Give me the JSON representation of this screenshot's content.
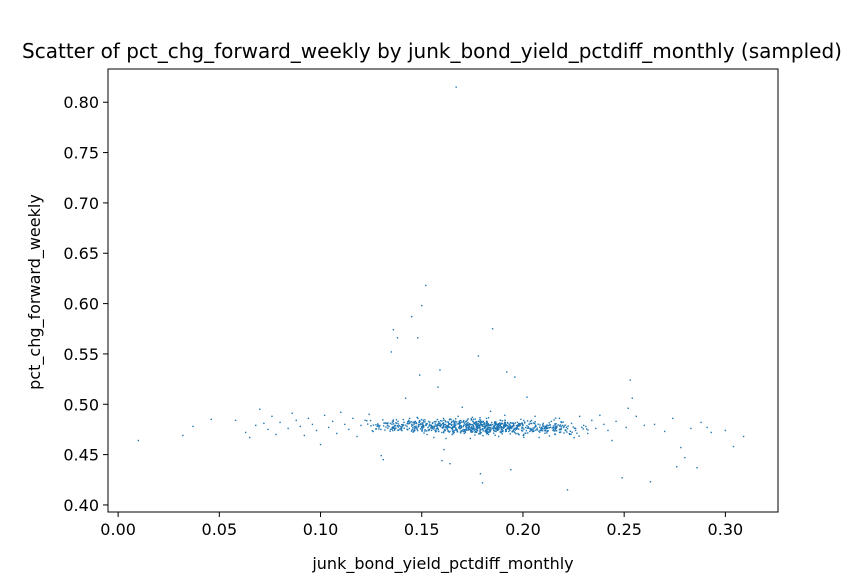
{
  "chart_data": {
    "type": "scatter",
    "title": "Scatter of pct_chg_forward_weekly by junk_bond_yield_pctdiff_monthly (sampled)",
    "xlabel": "junk_bond_yield_pctdiff_monthly",
    "ylabel": "pct_chg_forward_weekly",
    "xlim": [
      -0.005,
      0.326
    ],
    "ylim": [
      0.393,
      0.833
    ],
    "xticks": [
      0.0,
      0.05,
      0.1,
      0.15,
      0.2,
      0.25,
      0.3
    ],
    "xtick_labels": [
      "0.00",
      "0.05",
      "0.10",
      "0.15",
      "0.20",
      "0.25",
      "0.30"
    ],
    "yticks": [
      0.4,
      0.45,
      0.5,
      0.55,
      0.6,
      0.65,
      0.7,
      0.75,
      0.8
    ],
    "ytick_labels": [
      "0.40",
      "0.45",
      "0.50",
      "0.55",
      "0.60",
      "0.65",
      "0.70",
      "0.75",
      "0.80"
    ],
    "grid": false,
    "point_color": "#1f77b4",
    "series": [
      {
        "points": [
          [
            0.01,
            0.464
          ],
          [
            0.032,
            0.469
          ],
          [
            0.037,
            0.478
          ],
          [
            0.046,
            0.485
          ],
          [
            0.058,
            0.484
          ],
          [
            0.063,
            0.472
          ],
          [
            0.065,
            0.467
          ],
          [
            0.068,
            0.479
          ],
          [
            0.07,
            0.495
          ],
          [
            0.072,
            0.481
          ],
          [
            0.074,
            0.475
          ],
          [
            0.076,
            0.488
          ],
          [
            0.078,
            0.47
          ],
          [
            0.08,
            0.482
          ],
          [
            0.084,
            0.476
          ],
          [
            0.086,
            0.491
          ],
          [
            0.088,
            0.484
          ],
          [
            0.09,
            0.478
          ],
          [
            0.092,
            0.469
          ],
          [
            0.094,
            0.486
          ],
          [
            0.096,
            0.48
          ],
          [
            0.098,
            0.474
          ],
          [
            0.1,
            0.46
          ],
          [
            0.102,
            0.489
          ],
          [
            0.104,
            0.477
          ],
          [
            0.106,
            0.483
          ],
          [
            0.108,
            0.471
          ],
          [
            0.11,
            0.492
          ],
          [
            0.112,
            0.48
          ],
          [
            0.114,
            0.475
          ],
          [
            0.116,
            0.486
          ],
          [
            0.118,
            0.468
          ],
          [
            0.12,
            0.479
          ],
          [
            0.122,
            0.484
          ],
          [
            0.124,
            0.49
          ],
          [
            0.126,
            0.473
          ],
          [
            0.128,
            0.478
          ],
          [
            0.13,
            0.449
          ],
          [
            0.131,
            0.445
          ],
          [
            0.133,
            0.481
          ],
          [
            0.135,
            0.552
          ],
          [
            0.136,
            0.574
          ],
          [
            0.138,
            0.566
          ],
          [
            0.14,
            0.476
          ],
          [
            0.142,
            0.506
          ],
          [
            0.144,
            0.486
          ],
          [
            0.145,
            0.587
          ],
          [
            0.148,
            0.566
          ],
          [
            0.149,
            0.529
          ],
          [
            0.15,
            0.598
          ],
          [
            0.152,
            0.618
          ],
          [
            0.154,
            0.482
          ],
          [
            0.156,
            0.467
          ],
          [
            0.158,
            0.517
          ],
          [
            0.159,
            0.534
          ],
          [
            0.16,
            0.444
          ],
          [
            0.161,
            0.455
          ],
          [
            0.162,
            0.466
          ],
          [
            0.163,
            0.474
          ],
          [
            0.164,
            0.441
          ],
          [
            0.165,
            0.47
          ],
          [
            0.166,
            0.48
          ],
          [
            0.167,
            0.815
          ],
          [
            0.168,
            0.488
          ],
          [
            0.169,
            0.476
          ],
          [
            0.17,
            0.497
          ],
          [
            0.171,
            0.471
          ],
          [
            0.172,
            0.483
          ],
          [
            0.173,
            0.479
          ],
          [
            0.174,
            0.466
          ],
          [
            0.175,
            0.487
          ],
          [
            0.176,
            0.474
          ],
          [
            0.177,
            0.482
          ],
          [
            0.178,
            0.548
          ],
          [
            0.179,
            0.431
          ],
          [
            0.18,
            0.422
          ],
          [
            0.181,
            0.478
          ],
          [
            0.182,
            0.486
          ],
          [
            0.183,
            0.47
          ],
          [
            0.184,
            0.493
          ],
          [
            0.185,
            0.575
          ],
          [
            0.186,
            0.481
          ],
          [
            0.187,
            0.475
          ],
          [
            0.188,
            0.468
          ],
          [
            0.189,
            0.484
          ],
          [
            0.19,
            0.477
          ],
          [
            0.191,
            0.489
          ],
          [
            0.192,
            0.532
          ],
          [
            0.193,
            0.473
          ],
          [
            0.194,
            0.435
          ],
          [
            0.195,
            0.481
          ],
          [
            0.196,
            0.527
          ],
          [
            0.197,
            0.476
          ],
          [
            0.198,
            0.47
          ],
          [
            0.199,
            0.485
          ],
          [
            0.2,
            0.479
          ],
          [
            0.202,
            0.507
          ],
          [
            0.204,
            0.474
          ],
          [
            0.206,
            0.488
          ],
          [
            0.208,
            0.467
          ],
          [
            0.21,
            0.481
          ],
          [
            0.212,
            0.476
          ],
          [
            0.214,
            0.483
          ],
          [
            0.216,
            0.47
          ],
          [
            0.218,
            0.486
          ],
          [
            0.22,
            0.477
          ],
          [
            0.222,
            0.415
          ],
          [
            0.224,
            0.481
          ],
          [
            0.226,
            0.474
          ],
          [
            0.228,
            0.488
          ],
          [
            0.23,
            0.479
          ],
          [
            0.232,
            0.471
          ],
          [
            0.234,
            0.484
          ],
          [
            0.236,
            0.476
          ],
          [
            0.238,
            0.489
          ],
          [
            0.24,
            0.48
          ],
          [
            0.242,
            0.474
          ],
          [
            0.244,
            0.464
          ],
          [
            0.246,
            0.483
          ],
          [
            0.249,
            0.427
          ],
          [
            0.251,
            0.477
          ],
          [
            0.252,
            0.496
          ],
          [
            0.253,
            0.524
          ],
          [
            0.254,
            0.506
          ],
          [
            0.256,
            0.488
          ],
          [
            0.26,
            0.479
          ],
          [
            0.263,
            0.423
          ],
          [
            0.265,
            0.48
          ],
          [
            0.27,
            0.473
          ],
          [
            0.274,
            0.486
          ],
          [
            0.276,
            0.438
          ],
          [
            0.278,
            0.457
          ],
          [
            0.28,
            0.447
          ],
          [
            0.283,
            0.476
          ],
          [
            0.286,
            0.437
          ],
          [
            0.288,
            0.482
          ],
          [
            0.291,
            0.477
          ],
          [
            0.293,
            0.472
          ],
          [
            0.3,
            0.474
          ],
          [
            0.304,
            0.458
          ],
          [
            0.309,
            0.468
          ]
        ],
        "dense_core": [
          {
            "x_center": 0.168,
            "x_spread": 0.02,
            "y_center": 0.478,
            "y_spread": 0.005,
            "count": 420
          },
          {
            "x_center": 0.19,
            "x_spread": 0.014,
            "y_center": 0.477,
            "y_spread": 0.005,
            "count": 260
          },
          {
            "x_center": 0.215,
            "x_spread": 0.012,
            "y_center": 0.476,
            "y_spread": 0.005,
            "count": 120
          },
          {
            "x_center": 0.14,
            "x_spread": 0.01,
            "y_center": 0.479,
            "y_spread": 0.004,
            "count": 110
          }
        ]
      }
    ]
  }
}
